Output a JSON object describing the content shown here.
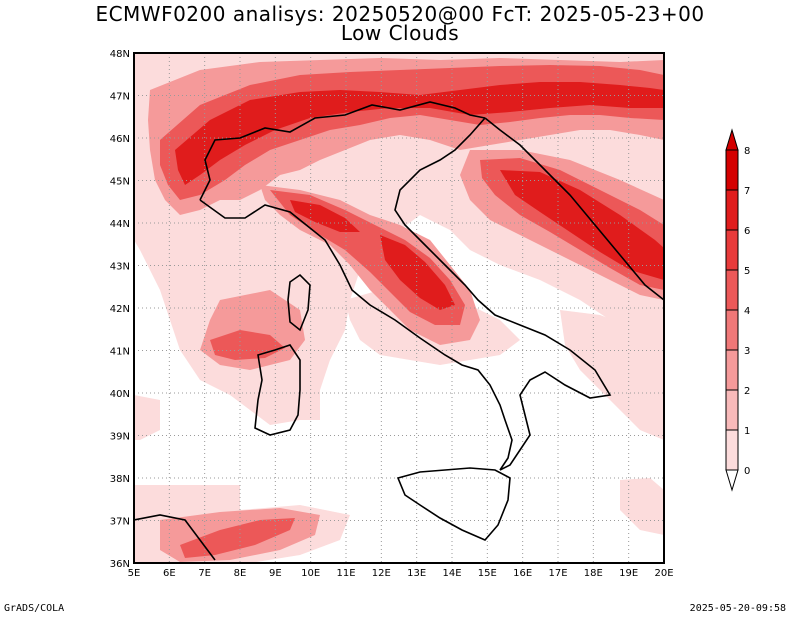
{
  "header": {
    "title_line1": "ECMWF0200 analisys: 20250520@00 FcT: 2025-05-23+00",
    "title_line2": "Low Clouds"
  },
  "map": {
    "lon_labels": [
      "5E",
      "6E",
      "7E",
      "8E",
      "9E",
      "10E",
      "11E",
      "12E",
      "13E",
      "14E",
      "15E",
      "16E",
      "17E",
      "18E",
      "19E",
      "20E"
    ],
    "lat_labels": [
      "48N",
      "47N",
      "46N",
      "45N",
      "44N",
      "43N",
      "42N",
      "41N",
      "40N",
      "39N",
      "38N",
      "37N",
      "36N"
    ],
    "lon_range": [
      5,
      20
    ],
    "lat_range": [
      36,
      48
    ],
    "grid": "dotted"
  },
  "colorbar": {
    "levels": [
      "0",
      "1",
      "2",
      "3",
      "4",
      "5",
      "6",
      "7",
      "8"
    ],
    "colors": [
      "#ffffff",
      "#fcdcdc",
      "#f8baba",
      "#f59a9a",
      "#f07878",
      "#ec5858",
      "#e83a3a",
      "#e01c1c",
      "#d40000"
    ]
  },
  "footer": {
    "left": "GrADS/COLA",
    "right": "2025-05-20-09:58"
  }
}
